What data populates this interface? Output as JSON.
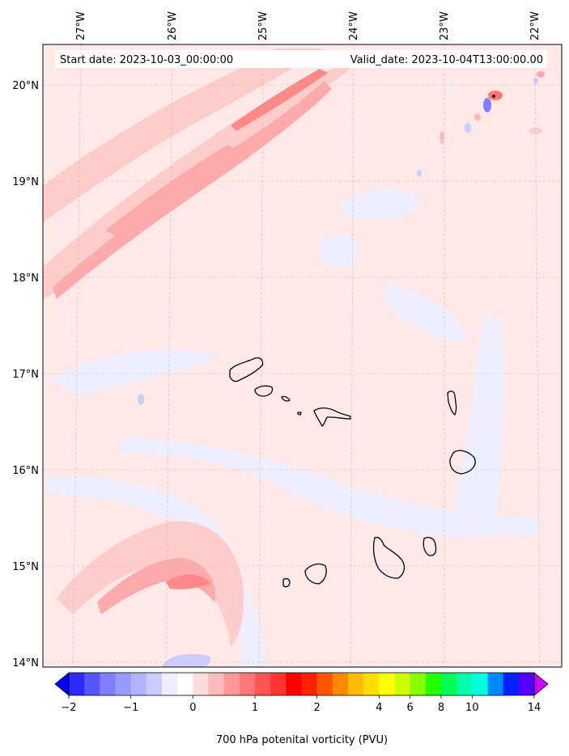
{
  "map": {
    "start_date_label": "Start date: 2023-10-03_00:00:00",
    "valid_date_label": "Valid_date: 2023-10-04T13:00:00.00",
    "lon_ticks": [
      "27°W",
      "26°W",
      "25°W",
      "24°W",
      "23°W",
      "22°W"
    ],
    "lat_ticks": [
      "20°N",
      "19°N",
      "18°N",
      "17°N",
      "16°N",
      "15°N",
      "14°N"
    ],
    "extent": {
      "lon_min": -27.35,
      "lon_max": -21.8,
      "lat_min": 13.95,
      "lat_max": 20.42
    },
    "features": [
      "Cape Verde islands coastline"
    ]
  },
  "colorbar": {
    "title": "700 hPa potenital vorticity (PVU)",
    "tick_labels": [
      "−2",
      "−1",
      "0",
      "1",
      "2",
      "4",
      "6",
      "8",
      "10",
      "14"
    ],
    "levels": [
      -2,
      -1.75,
      -1.5,
      -1.25,
      -1,
      -0.75,
      -0.5,
      -0.25,
      0,
      0.25,
      0.5,
      0.75,
      1,
      1.25,
      1.5,
      1.75,
      2,
      2.5,
      3,
      3.5,
      4,
      5,
      6,
      7,
      8,
      9,
      10,
      11,
      12,
      13,
      14,
      15
    ],
    "colors": [
      "#0000ff",
      "#2a2aff",
      "#5555ff",
      "#7f7fff",
      "#9999ff",
      "#b3b3ff",
      "#ccccff",
      "#eeeeff",
      "#ffffff",
      "#ffdddd",
      "#ffbbbb",
      "#ff9999",
      "#ff7777",
      "#ff5555",
      "#ff3333",
      "#ff0000",
      "#ff2200",
      "#ff5500",
      "#ff8800",
      "#ffbb00",
      "#ffdd00",
      "#ffff00",
      "#ccff00",
      "#88ff00",
      "#22ff00",
      "#00ff55",
      "#00ffaa",
      "#00ffdd",
      "#0088ff",
      "#0022ff",
      "#5500ff",
      "#cc00ff"
    ],
    "extend": "both"
  }
}
